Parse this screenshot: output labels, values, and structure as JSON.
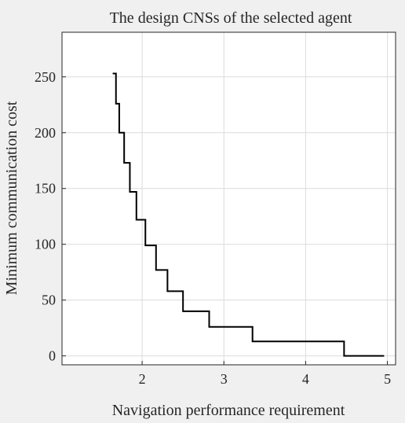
{
  "chart_data": {
    "type": "line",
    "title": "The design CNSs of the selected agent",
    "xlabel": "Navigation performance requirement",
    "ylabel": "Minimum communication cost",
    "xlim": [
      1.02,
      5.1
    ],
    "ylim": [
      -8,
      290
    ],
    "grid": true,
    "step": "vertical-then-horizontal",
    "x_ticks": [
      2,
      3,
      4,
      5
    ],
    "y_ticks": [
      0,
      50,
      100,
      150,
      200,
      250
    ],
    "series": [
      {
        "color": "#000000",
        "points": [
          [
            1.64,
            253
          ],
          [
            1.68,
            253
          ],
          [
            1.68,
            226
          ],
          [
            1.72,
            226
          ],
          [
            1.72,
            200
          ],
          [
            1.78,
            200
          ],
          [
            1.78,
            173
          ],
          [
            1.85,
            173
          ],
          [
            1.85,
            147
          ],
          [
            1.93,
            147
          ],
          [
            1.93,
            122
          ],
          [
            2.04,
            122
          ],
          [
            2.04,
            99
          ],
          [
            2.17,
            99
          ],
          [
            2.17,
            77
          ],
          [
            2.31,
            77
          ],
          [
            2.31,
            58
          ],
          [
            2.5,
            58
          ],
          [
            2.5,
            40
          ],
          [
            2.82,
            40
          ],
          [
            2.82,
            26
          ],
          [
            3.35,
            26
          ],
          [
            3.35,
            13
          ],
          [
            4.47,
            13
          ],
          [
            4.47,
            0
          ],
          [
            4.96,
            0
          ]
        ]
      }
    ]
  }
}
